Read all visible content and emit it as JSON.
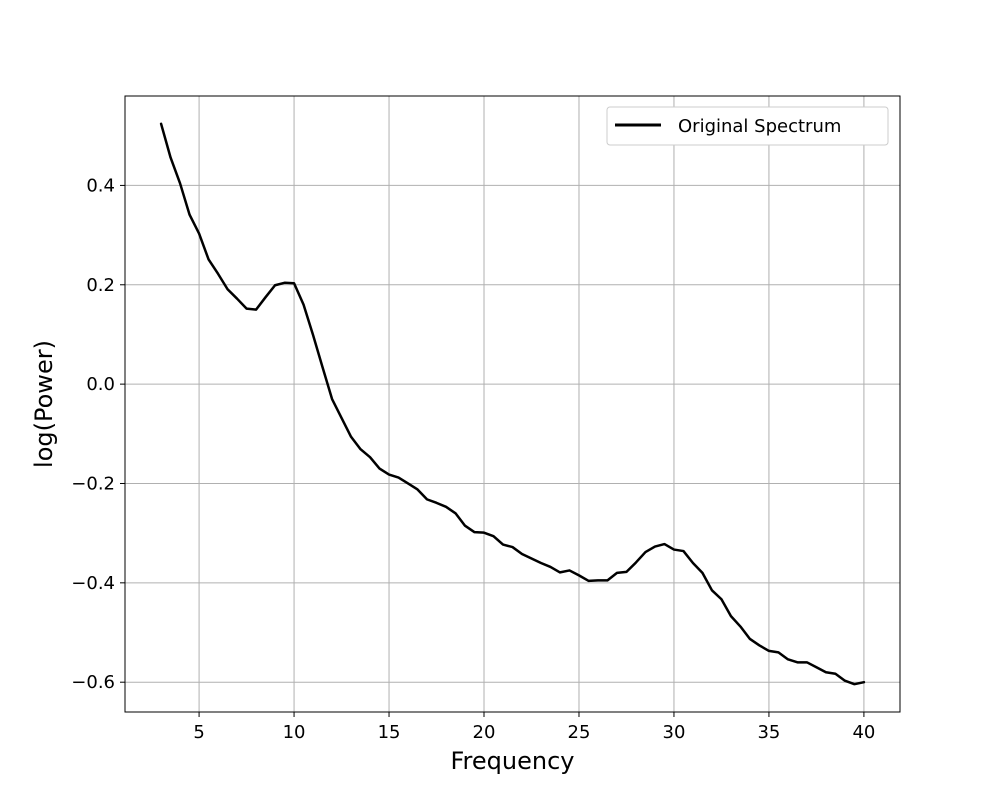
{
  "chart_data": {
    "type": "line",
    "title": "",
    "xlabel": "Frequency",
    "ylabel": "log(Power)",
    "xlim": [
      1.1,
      41.9
    ],
    "ylim": [
      -0.66,
      0.58
    ],
    "xticks": [
      5,
      10,
      15,
      20,
      25,
      30,
      35,
      40
    ],
    "yticks": [
      0.4,
      0.2,
      0.0,
      -0.2,
      -0.4,
      -0.6
    ],
    "xtick_labels": [
      "5",
      "10",
      "15",
      "20",
      "25",
      "30",
      "35",
      "40"
    ],
    "ytick_labels": [
      "0.4",
      "0.2",
      "0.0",
      "−0.2",
      "−0.4",
      "−0.6"
    ],
    "grid": true,
    "legend_position": "top-right",
    "colors": {
      "line": "#000000",
      "grid": "#b0b0b0",
      "axes": "#000000"
    },
    "series": [
      {
        "name": "Original Spectrum",
        "x": [
          3,
          3.5,
          4,
          4.5,
          5,
          5.5,
          6,
          6.5,
          7,
          7.5,
          8,
          8.5,
          9,
          9.5,
          10,
          10.5,
          11,
          11.5,
          12,
          12.5,
          13,
          13.5,
          14,
          14.5,
          15,
          15.5,
          16,
          16.5,
          17,
          17.5,
          18,
          18.5,
          19,
          19.5,
          20,
          20.5,
          21,
          21.5,
          22,
          22.5,
          23,
          23.5,
          24,
          24.5,
          25,
          25.5,
          26,
          26.5,
          27,
          27.5,
          28,
          28.5,
          29,
          29.5,
          30,
          30.5,
          31,
          31.5,
          32,
          32.5,
          33,
          33.5,
          34,
          34.5,
          35,
          35.5,
          36,
          36.5,
          37,
          37.5,
          38,
          38.5,
          39,
          39.5,
          40
        ],
        "y": [
          0.524,
          0.456,
          0.404,
          0.341,
          0.303,
          0.251,
          0.222,
          0.191,
          0.172,
          0.152,
          0.15,
          0.175,
          0.199,
          0.204,
          0.203,
          0.16,
          0.099,
          0.034,
          -0.03,
          -0.068,
          -0.106,
          -0.131,
          -0.147,
          -0.17,
          -0.182,
          -0.188,
          -0.2,
          -0.212,
          -0.232,
          -0.239,
          -0.247,
          -0.26,
          -0.285,
          -0.298,
          -0.299,
          -0.306,
          -0.323,
          -0.328,
          -0.342,
          -0.351,
          -0.36,
          -0.368,
          -0.379,
          -0.375,
          -0.385,
          -0.396,
          -0.395,
          -0.395,
          -0.38,
          -0.378,
          -0.359,
          -0.338,
          -0.327,
          -0.322,
          -0.333,
          -0.336,
          -0.36,
          -0.38,
          -0.415,
          -0.433,
          -0.467,
          -0.488,
          -0.513,
          -0.526,
          -0.537,
          -0.54,
          -0.554,
          -0.56,
          -0.56,
          -0.57,
          -0.58,
          -0.583,
          -0.597,
          -0.604,
          -0.6
        ]
      }
    ]
  }
}
